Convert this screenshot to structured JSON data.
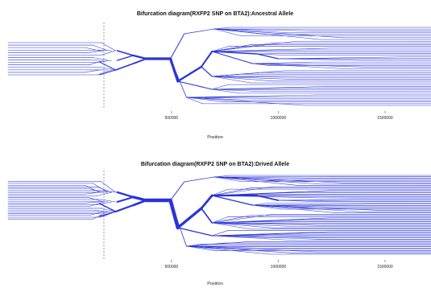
{
  "chart_data": [
    {
      "type": "line",
      "title": "Bifurcation diagram(RXFP2 SNP on BTA2):Ancestral Allele",
      "xlabel": "Position",
      "ylabel": "",
      "xlim": [
        -265000,
        1715000
      ],
      "xticks": [
        {
          "value": 500000,
          "label": "500000"
        },
        {
          "value": 1000000,
          "label": "1000000"
        },
        {
          "value": 1500000,
          "label": "1500000"
        }
      ],
      "core_snp_position": 465000,
      "line_color": "#2b35d8",
      "haplotype_counts": {
        "left": 14,
        "right": 46
      },
      "grid": false
    },
    {
      "type": "line",
      "title": "Bifurcation diagram(RXFP2 SNP on BTA2):Drived Allele",
      "xlabel": "Position",
      "ylabel": "",
      "xlim": [
        -265000,
        1715000
      ],
      "xticks": [
        {
          "value": 500000,
          "label": "500000"
        },
        {
          "value": 1000000,
          "label": "1000000"
        },
        {
          "value": 1500000,
          "label": "1500000"
        }
      ],
      "core_snp_position": 465000,
      "line_color": "#2b35d8",
      "haplotype_counts": {
        "left": 22,
        "right": 64
      },
      "grid": false
    }
  ]
}
